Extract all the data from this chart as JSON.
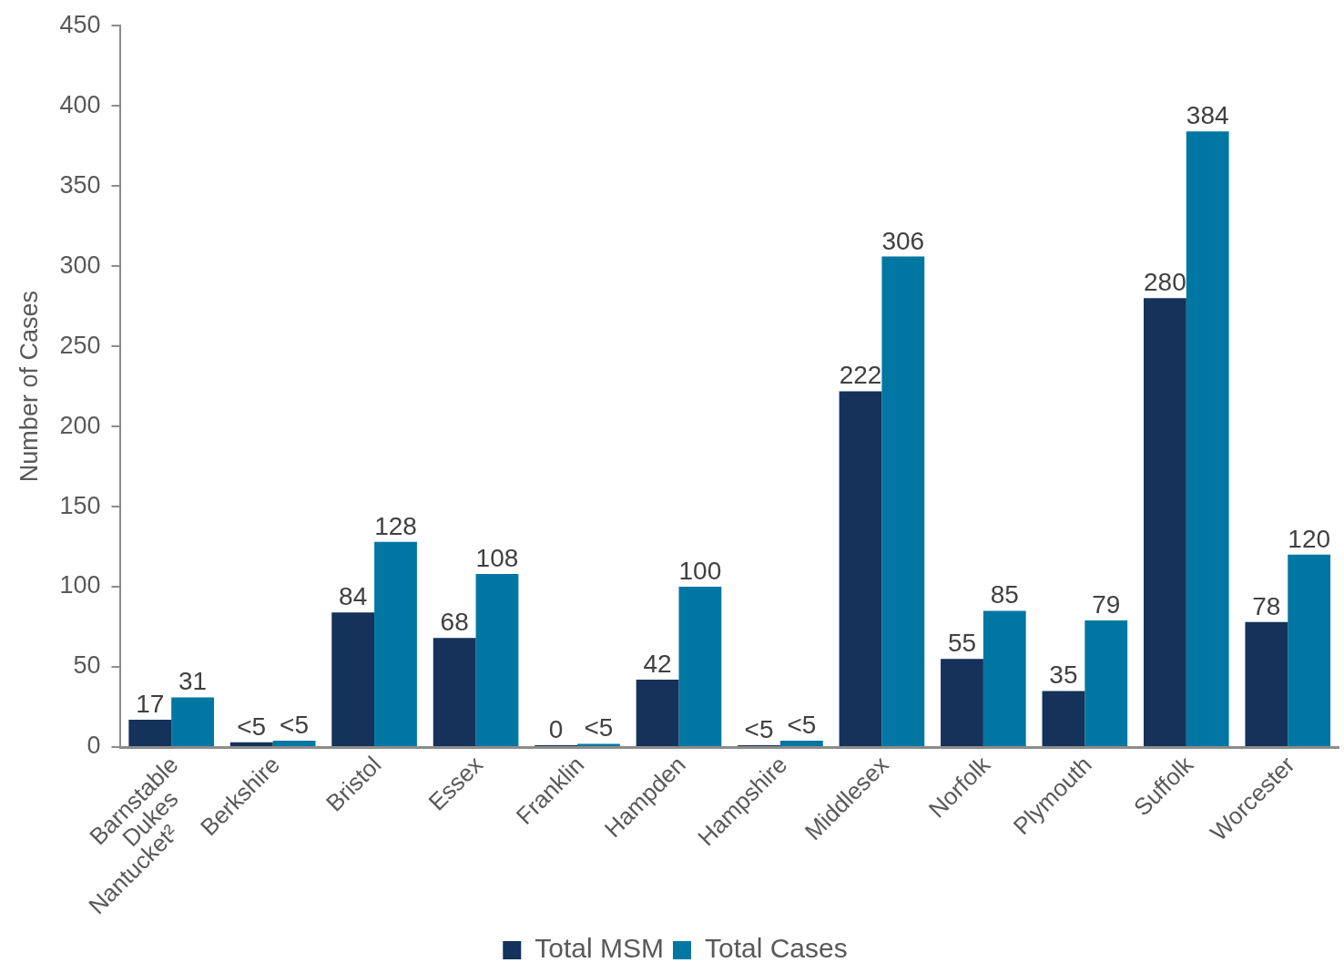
{
  "chart_data": {
    "type": "bar",
    "ylabel": "Number of Cases",
    "categories": [
      "Barnstable\nDukes\nNantucket²",
      "Berkshire",
      "Bristol",
      "Essex",
      "Franklin",
      "Hampden",
      "Hampshire",
      "Middlesex",
      "Norfolk",
      "Plymouth",
      "Suffolk",
      "Worcester"
    ],
    "ylim": [
      0,
      450
    ],
    "yticks": [
      0,
      50,
      100,
      150,
      200,
      250,
      300,
      350,
      400,
      450
    ],
    "grid": false,
    "legend": "bottom",
    "series": [
      {
        "name": "Total MSM",
        "color": "#14325a",
        "values": [
          17,
          3,
          84,
          68,
          0,
          42,
          1,
          222,
          55,
          35,
          280,
          78
        ],
        "value_labels": [
          "17",
          "<5",
          "84",
          "68",
          "0",
          "42",
          "<5",
          "222",
          "55",
          "35",
          "280",
          "78"
        ]
      },
      {
        "name": "Total Cases",
        "color": "#0077a2",
        "values": [
          31,
          4,
          128,
          108,
          2,
          100,
          4,
          306,
          85,
          79,
          384,
          120
        ],
        "value_labels": [
          "31",
          "<5",
          "128",
          "108",
          "<5",
          "100",
          "<5",
          "306",
          "85",
          "79",
          "384",
          "120"
        ]
      }
    ]
  }
}
